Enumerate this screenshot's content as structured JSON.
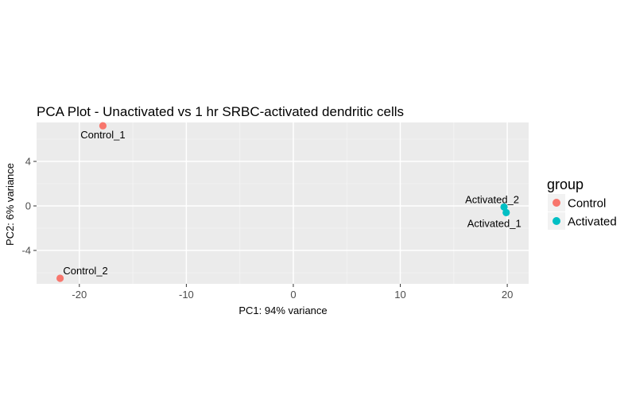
{
  "chart_data": {
    "type": "scatter",
    "title": "PCA Plot - Unactivated vs 1 hr SRBC-activated dendritic cells",
    "xlabel": "PC1: 94% variance",
    "ylabel": "PC2: 6% variance",
    "xlim": [
      -24,
      22
    ],
    "ylim": [
      -7,
      7.5
    ],
    "xticks": [
      -20,
      -10,
      0,
      10,
      20
    ],
    "xtick_labels": [
      "-20",
      "-10",
      "0",
      "10",
      "20"
    ],
    "yticks": [
      -4,
      0,
      4
    ],
    "ytick_labels": [
      "-4",
      "0",
      "4"
    ],
    "grid": true,
    "legend_position": "right",
    "legend_title": "group",
    "series": [
      {
        "name": "Control",
        "color": "#F8766D",
        "points": [
          {
            "label": "Control_1",
            "x": -17.8,
            "y": 7.2
          },
          {
            "label": "Control_2",
            "x": -21.8,
            "y": -6.5
          }
        ]
      },
      {
        "name": "Activated",
        "color": "#00BFC4",
        "points": [
          {
            "label": "Activated_2",
            "x": 19.7,
            "y": -0.1
          },
          {
            "label": "Activated_1",
            "x": 19.9,
            "y": -0.6
          }
        ]
      }
    ]
  }
}
